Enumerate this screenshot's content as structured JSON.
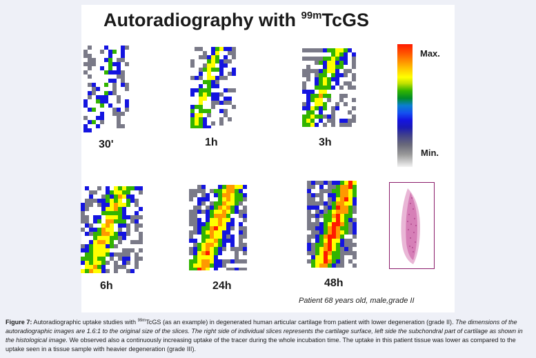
{
  "figure": {
    "title_main": "Autoradiography with ",
    "title_sup": "99m",
    "title_tail": "TcGS",
    "time_labels": [
      "30'",
      "1h",
      "3h",
      "6h",
      "24h",
      "48h"
    ],
    "colorbar": {
      "max_label": "Max.",
      "min_label": "Min."
    },
    "patient_note": "Patient 68 years old, male,grade II",
    "colors": {
      "hot": "#ff1a00",
      "orange": "#ff9900",
      "yellow": "#ffff00",
      "green": "#32b400",
      "blue": "#1414e0",
      "gray": "#7a7a88",
      "histology": "#c0408a"
    }
  },
  "caption": {
    "label": "Figure 7:",
    "text_a": " Autoradiographic uptake studies with ",
    "sup": "99m",
    "text_b": "TcGS (as an example) in degenerated human articular cartilage from patient with lower degeneration (grade II). ",
    "italic": "The dimensions of the autoradiographic images are 1.6:1 to the original size of the slices. The right side of individual slices represents the cartilage surface, left side the subchondral part of cartilage as shown in the histological image.",
    "text_c": " We observed also a continuously increasing uptake of the tracer during the whole incubation time. The uptake in this patient tissue was lower as compared to the uptake seen in a tissue sample with heavier degeneration (grade III)."
  }
}
